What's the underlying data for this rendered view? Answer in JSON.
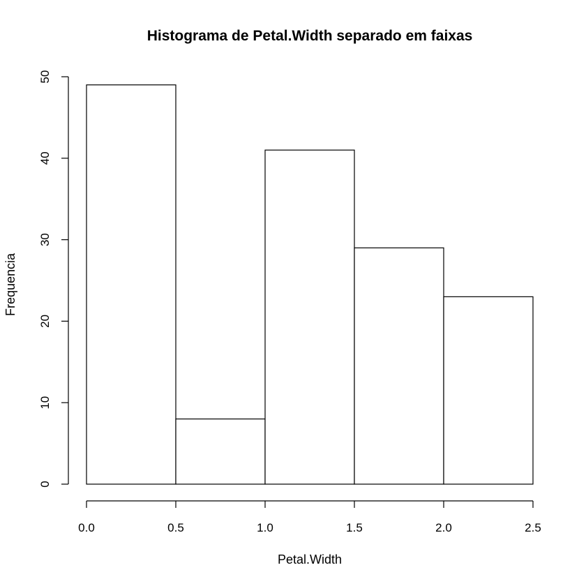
{
  "chart_data": {
    "type": "bar",
    "title": "Histograma de Petal.Width separado em faixas",
    "xlabel": "Petal.Width",
    "ylabel": "Frequencia",
    "bins": [
      {
        "from": 0.0,
        "to": 0.5,
        "count": 49
      },
      {
        "from": 0.5,
        "to": 1.0,
        "count": 8
      },
      {
        "from": 1.0,
        "to": 1.5,
        "count": 41
      },
      {
        "from": 1.5,
        "to": 2.0,
        "count": 29
      },
      {
        "from": 2.0,
        "to": 2.5,
        "count": 23
      }
    ],
    "xlim": [
      0,
      2.5
    ],
    "ylim": [
      0,
      50
    ],
    "x_ticks": [
      "0.0",
      "0.5",
      "1.0",
      "1.5",
      "2.0",
      "2.5"
    ],
    "y_ticks": [
      "0",
      "10",
      "20",
      "30",
      "40",
      "50"
    ],
    "grid": false,
    "bar_fill": "#ffffff",
    "bar_stroke": "#000000"
  }
}
